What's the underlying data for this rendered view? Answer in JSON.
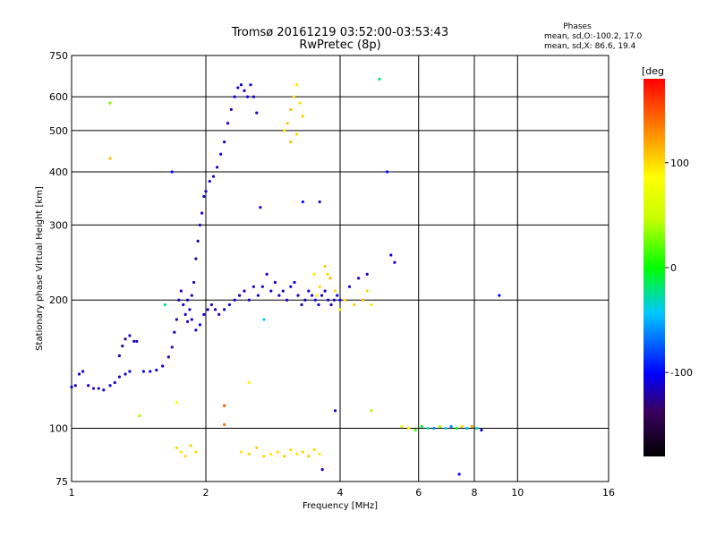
{
  "chart_data": {
    "type": "scatter",
    "title_line1": "Tromsø 20161219 03:52:00-03:53:43",
    "title_line2": "RwPretec (8p)",
    "stats": {
      "heading": "Phases",
      "line_o": "mean, sd,O:-100.2, 17.0",
      "line_x": "mean, sd,X:  86.6, 19.4"
    },
    "xlabel": "Frequency [MHz]",
    "ylabel": "Stationary phase Virtual Height [km]",
    "x_scale": "log",
    "y_scale": "log",
    "xlim": [
      1,
      16
    ],
    "ylim": [
      75,
      750
    ],
    "x_ticks": [
      1,
      2,
      4,
      6,
      8,
      10,
      16
    ],
    "x_grid": [
      2,
      4,
      6,
      8,
      10
    ],
    "y_ticks": [
      75,
      100,
      200,
      300,
      400,
      500,
      600,
      750
    ],
    "y_grid": [
      100,
      200,
      300,
      400,
      500,
      600
    ],
    "grid": true,
    "colorbar": {
      "label": "[deg",
      "range": [
        -180,
        180
      ],
      "ticks": [
        -100,
        0,
        100
      ],
      "colormap": "rainbow"
    },
    "series": [
      {
        "points": [
          [
            1.0,
            125,
            -110
          ],
          [
            1.02,
            126,
            -112
          ],
          [
            1.04,
            134,
            -110
          ],
          [
            1.06,
            136,
            -108
          ],
          [
            1.09,
            126,
            -115
          ],
          [
            1.12,
            124,
            -118
          ],
          [
            1.15,
            124,
            -112
          ],
          [
            1.18,
            123,
            -110
          ],
          [
            1.22,
            126,
            -108
          ],
          [
            1.25,
            128,
            -112
          ],
          [
            1.28,
            132,
            -115
          ],
          [
            1.32,
            134,
            -118
          ],
          [
            1.35,
            136,
            -110
          ],
          [
            1.28,
            148,
            -120
          ],
          [
            1.3,
            156,
            -125
          ],
          [
            1.32,
            162,
            -128
          ],
          [
            1.35,
            165,
            -120
          ],
          [
            1.38,
            160,
            -118
          ],
          [
            1.4,
            160,
            -115
          ],
          [
            1.45,
            136,
            -112
          ],
          [
            1.5,
            136,
            -110
          ],
          [
            1.55,
            137,
            -108
          ],
          [
            1.6,
            140,
            -112
          ],
          [
            1.65,
            147,
            -115
          ],
          [
            1.68,
            155,
            -120
          ],
          [
            1.7,
            168,
            -122
          ],
          [
            1.72,
            180,
            -118
          ],
          [
            1.74,
            200,
            -115
          ],
          [
            1.76,
            210,
            -112
          ],
          [
            1.78,
            195,
            -110
          ],
          [
            1.8,
            185,
            -108
          ],
          [
            1.82,
            178,
            -112
          ],
          [
            1.84,
            190,
            -115
          ],
          [
            1.86,
            205,
            -118
          ],
          [
            1.88,
            220,
            -120
          ],
          [
            1.9,
            250,
            -125
          ],
          [
            1.92,
            275,
            -120
          ],
          [
            1.94,
            300,
            -118
          ],
          [
            1.96,
            320,
            -115
          ],
          [
            1.98,
            350,
            -112
          ],
          [
            2.0,
            360,
            -110
          ],
          [
            2.04,
            380,
            -108
          ],
          [
            2.08,
            390,
            -112
          ],
          [
            2.12,
            410,
            -115
          ],
          [
            2.16,
            440,
            -110
          ],
          [
            2.2,
            470,
            -108
          ],
          [
            2.24,
            520,
            -112
          ],
          [
            2.28,
            560,
            -115
          ],
          [
            2.32,
            600,
            -110
          ],
          [
            2.36,
            630,
            -108
          ],
          [
            2.4,
            640,
            -112
          ],
          [
            2.44,
            620,
            -115
          ],
          [
            2.48,
            600,
            -110
          ],
          [
            2.52,
            640,
            -108
          ],
          [
            2.56,
            600,
            -112
          ],
          [
            2.6,
            550,
            -110
          ]
        ]
      },
      {
        "points": [
          [
            1.82,
            200,
            -115
          ],
          [
            1.86,
            180,
            -112
          ],
          [
            1.9,
            170,
            -110
          ],
          [
            1.94,
            175,
            -108
          ],
          [
            1.98,
            185,
            -112
          ],
          [
            2.02,
            190,
            -115
          ],
          [
            2.06,
            195,
            -118
          ],
          [
            2.1,
            190,
            -115
          ],
          [
            2.14,
            185,
            -112
          ],
          [
            2.2,
            190,
            -110
          ],
          [
            2.26,
            195,
            -108
          ],
          [
            2.32,
            200,
            -112
          ],
          [
            2.38,
            205,
            -115
          ],
          [
            2.44,
            210,
            -118
          ],
          [
            2.5,
            200,
            -115
          ],
          [
            2.56,
            215,
            -112
          ],
          [
            2.62,
            205,
            -110
          ],
          [
            2.68,
            215,
            -108
          ],
          [
            2.74,
            230,
            -110
          ],
          [
            2.8,
            210,
            -112
          ],
          [
            2.86,
            220,
            -115
          ],
          [
            2.92,
            205,
            -118
          ],
          [
            2.98,
            210,
            -115
          ],
          [
            3.04,
            200,
            -112
          ],
          [
            3.1,
            215,
            -110
          ],
          [
            3.16,
            220,
            -108
          ],
          [
            3.22,
            205,
            -112
          ],
          [
            3.28,
            195,
            -115
          ],
          [
            3.34,
            200,
            -118
          ],
          [
            3.4,
            210,
            -115
          ],
          [
            3.46,
            205,
            -112
          ],
          [
            3.52,
            200,
            -110
          ],
          [
            3.58,
            195,
            -108
          ],
          [
            3.64,
            205,
            -112
          ],
          [
            3.7,
            210,
            -115
          ],
          [
            3.76,
            200,
            -118
          ],
          [
            3.82,
            195,
            -115
          ],
          [
            3.88,
            200,
            -112
          ],
          [
            3.94,
            205,
            -110
          ],
          [
            4.0,
            200,
            -108
          ],
          [
            4.2,
            215,
            -112
          ],
          [
            4.4,
            225,
            -115
          ],
          [
            4.6,
            230,
            -118
          ],
          [
            5.2,
            255,
            -110
          ],
          [
            5.3,
            245,
            -112
          ]
        ]
      },
      {
        "points": [
          [
            3.0,
            500,
            100
          ],
          [
            3.05,
            520,
            105
          ],
          [
            3.1,
            560,
            110
          ],
          [
            3.15,
            600,
            100
          ],
          [
            3.2,
            640,
            95
          ],
          [
            3.25,
            580,
            100
          ],
          [
            3.3,
            540,
            105
          ],
          [
            3.1,
            470,
            110
          ],
          [
            3.2,
            490,
            100
          ],
          [
            3.5,
            230,
            95
          ],
          [
            3.6,
            215,
            100
          ],
          [
            3.7,
            240,
            105
          ],
          [
            3.8,
            225,
            110
          ],
          [
            3.9,
            210,
            100
          ],
          [
            4.0,
            190,
            95
          ],
          [
            4.1,
            200,
            100
          ],
          [
            4.3,
            195,
            105
          ],
          [
            4.5,
            200,
            110
          ],
          [
            4.6,
            210,
            100
          ],
          [
            4.7,
            195,
            95
          ],
          [
            3.55,
            205,
            90
          ],
          [
            3.75,
            230,
            100
          ]
        ]
      },
      {
        "points": [
          [
            1.72,
            90,
            100
          ],
          [
            1.76,
            88,
            95
          ],
          [
            1.8,
            86,
            100
          ],
          [
            1.85,
            91,
            105
          ],
          [
            1.9,
            88,
            100
          ],
          [
            2.4,
            88,
            95
          ],
          [
            2.5,
            87,
            100
          ],
          [
            2.6,
            90,
            105
          ],
          [
            2.7,
            86,
            100
          ],
          [
            2.8,
            87,
            95
          ],
          [
            2.9,
            88,
            100
          ],
          [
            3.0,
            86,
            105
          ],
          [
            3.1,
            89,
            100
          ],
          [
            3.2,
            87,
            95
          ],
          [
            3.3,
            88,
            100
          ],
          [
            3.4,
            86,
            105
          ],
          [
            3.5,
            89,
            100
          ],
          [
            3.6,
            87,
            95
          ]
        ]
      },
      {
        "points": [
          [
            5.5,
            101,
            60
          ],
          [
            5.7,
            100,
            80
          ],
          [
            5.9,
            99,
            20
          ],
          [
            6.1,
            101,
            -10
          ],
          [
            6.3,
            100,
            -30
          ],
          [
            6.5,
            100,
            -60
          ],
          [
            6.7,
            101,
            40
          ],
          [
            6.9,
            100,
            -40
          ],
          [
            7.1,
            101,
            -60
          ],
          [
            7.3,
            100,
            0
          ],
          [
            7.5,
            101,
            100
          ],
          [
            7.7,
            100,
            -50
          ],
          [
            7.9,
            101,
            120
          ],
          [
            8.1,
            100,
            -30
          ],
          [
            8.3,
            99,
            -110
          ]
        ]
      },
      {
        "points": [
          [
            1.22,
            580,
            30
          ],
          [
            1.22,
            430,
            110
          ],
          [
            1.42,
            107,
            40
          ],
          [
            1.62,
            195,
            -20
          ],
          [
            1.68,
            400,
            -100
          ],
          [
            1.72,
            115,
            80
          ],
          [
            2.2,
            113,
            150
          ],
          [
            2.5,
            128,
            90
          ],
          [
            2.65,
            330,
            -110
          ],
          [
            2.7,
            180,
            -40
          ],
          [
            3.3,
            340,
            -100
          ],
          [
            3.6,
            340,
            -110
          ],
          [
            3.9,
            110,
            -110
          ],
          [
            4.7,
            110,
            40
          ],
          [
            4.9,
            660,
            -20
          ],
          [
            5.1,
            400,
            -100
          ],
          [
            7.4,
            78,
            -100
          ],
          [
            9.1,
            205,
            -100
          ],
          [
            3.65,
            80,
            -110
          ],
          [
            2.2,
            102,
            140
          ]
        ]
      }
    ]
  }
}
